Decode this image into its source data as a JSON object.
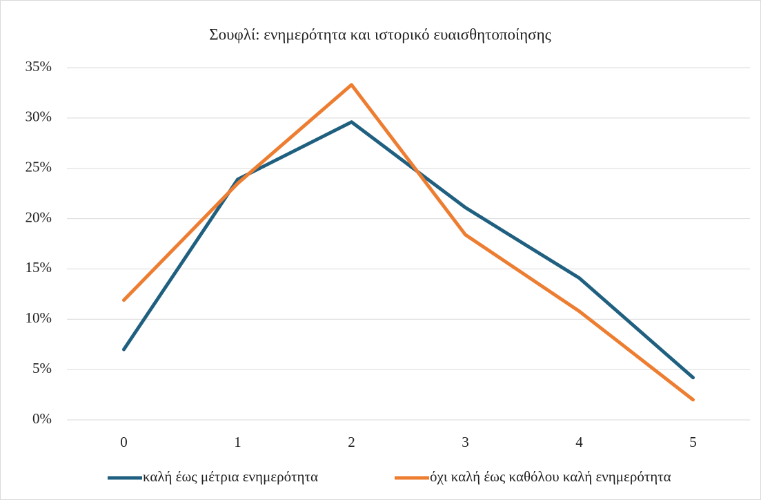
{
  "chart_data": {
    "type": "line",
    "title": "Σουφλί: ενημερότητα και ιστορικό ευαισθητοποίησης",
    "categories": [
      "0",
      "1",
      "2",
      "3",
      "4",
      "5"
    ],
    "series": [
      {
        "name": "καλή έως μέτρια ενημερότητα",
        "color": "#1f5f7f",
        "values": [
          7.0,
          23.9,
          29.6,
          21.1,
          14.1,
          4.2
        ]
      },
      {
        "name": "όχι καλή έως καθόλου καλή ενημερότητα",
        "color": "#ed7d31",
        "values": [
          11.9,
          23.5,
          33.3,
          18.4,
          10.8,
          2.0
        ]
      }
    ],
    "ylim": [
      0,
      35
    ],
    "yticks": [
      {
        "value": 0,
        "label": "0%"
      },
      {
        "value": 5,
        "label": "5%"
      },
      {
        "value": 10,
        "label": "10%"
      },
      {
        "value": 15,
        "label": "15%"
      },
      {
        "value": 20,
        "label": "20%"
      },
      {
        "value": 25,
        "label": "25%"
      },
      {
        "value": 30,
        "label": "30%"
      },
      {
        "value": 35,
        "label": "35%"
      }
    ],
    "grid": true,
    "legend": "bottom"
  }
}
